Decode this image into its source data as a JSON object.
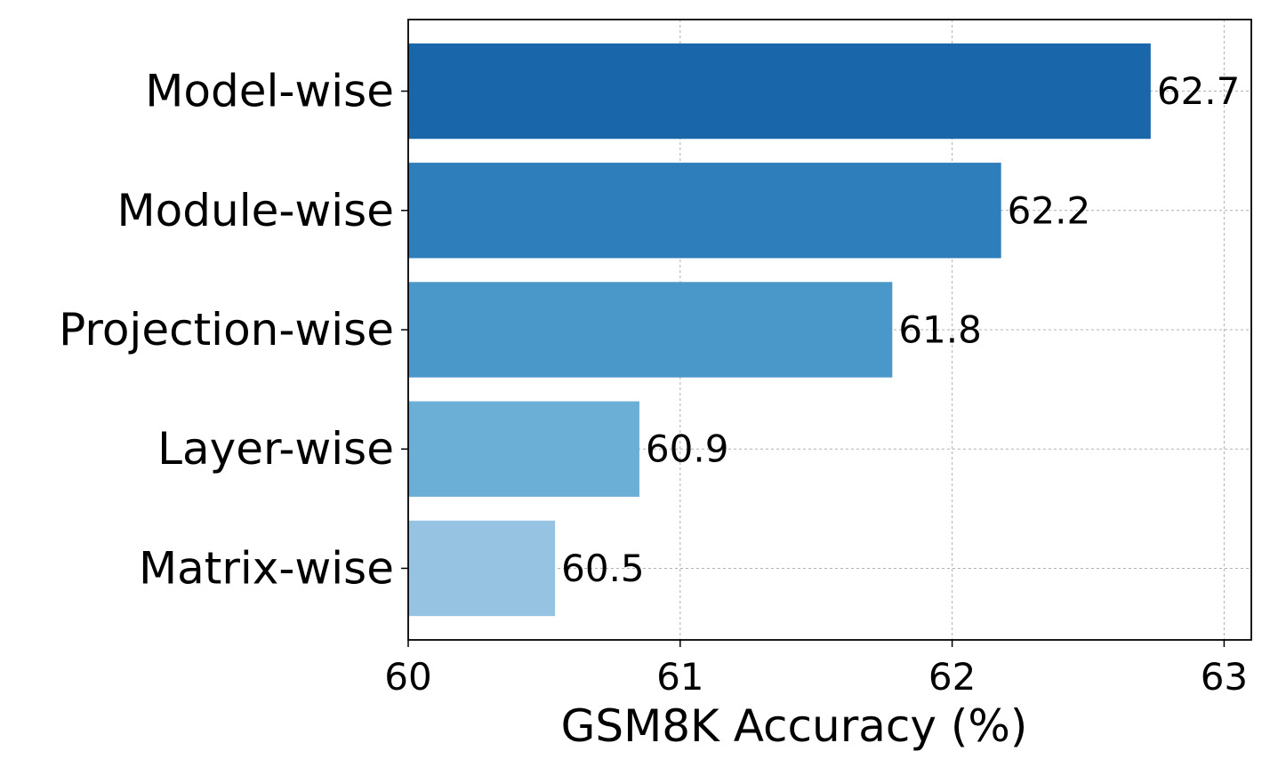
{
  "chart_data": {
    "type": "bar",
    "orientation": "horizontal",
    "categories": [
      "Model-wise",
      "Module-wise",
      "Projection-wise",
      "Layer-wise",
      "Matrix-wise"
    ],
    "values": [
      62.73,
      62.18,
      61.78,
      60.85,
      60.54
    ],
    "value_labels": [
      "62.7",
      "62.2",
      "61.8",
      "60.9",
      "60.5"
    ],
    "colors": [
      "#1a66ab",
      "#2f7ebc",
      "#4a97c9",
      "#6baed6",
      "#96c3e1"
    ],
    "title": "",
    "xlabel": "GSM8K Accuracy (%)",
    "ylabel": "",
    "xlim": [
      60,
      63.1
    ],
    "xticks": [
      60,
      61,
      62,
      63
    ],
    "xtick_labels": [
      "60",
      "61",
      "62",
      "63"
    ],
    "grid": true
  }
}
